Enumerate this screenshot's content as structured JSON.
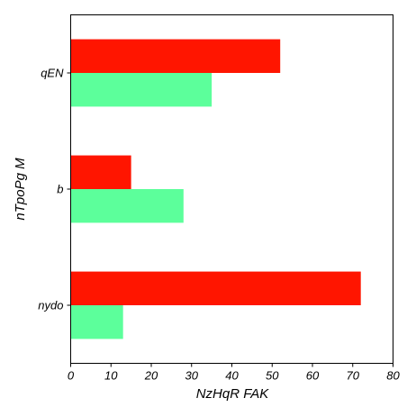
{
  "chart_data": {
    "type": "bar",
    "orientation": "horizontal",
    "categories": [
      "qEN",
      "b",
      "nydo"
    ],
    "series": [
      {
        "color": "#ff1500",
        "values": [
          52,
          15,
          72
        ]
      },
      {
        "color": "#5cff9b",
        "values": [
          35,
          28,
          13
        ]
      }
    ],
    "xlabel": "NzHqR FAK",
    "ylabel": "nTpoPg M",
    "xlim": [
      0,
      80
    ],
    "xticks": [
      0,
      10,
      20,
      30,
      40,
      50,
      60,
      70,
      80
    ],
    "grid": false,
    "legend": "none"
  }
}
